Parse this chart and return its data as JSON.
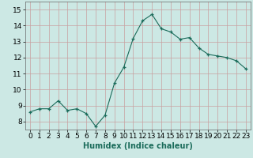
{
  "x": [
    0,
    1,
    2,
    3,
    4,
    5,
    6,
    7,
    8,
    9,
    10,
    11,
    12,
    13,
    14,
    15,
    16,
    17,
    18,
    19,
    20,
    21,
    22,
    23
  ],
  "y": [
    8.6,
    8.8,
    8.8,
    9.3,
    8.7,
    8.8,
    8.5,
    7.7,
    8.4,
    10.4,
    11.4,
    13.2,
    14.3,
    14.7,
    13.8,
    13.6,
    13.15,
    13.25,
    12.6,
    12.2,
    12.1,
    12.0,
    11.8,
    11.3
  ],
  "line_color": "#1a6b5a",
  "marker": "+",
  "marker_size": 3,
  "bg_color": "#cce8e4",
  "grid_color_major": "#c8a0a0",
  "grid_color_minor": "#c8a0a0",
  "xlabel": "Humidex (Indice chaleur)",
  "xlabel_fontsize": 7,
  "tick_fontsize": 6.5,
  "ylim": [
    7.5,
    15.5
  ],
  "yticks": [
    8,
    9,
    10,
    11,
    12,
    13,
    14,
    15
  ],
  "xlim": [
    -0.5,
    23.5
  ],
  "xticks": [
    0,
    1,
    2,
    3,
    4,
    5,
    6,
    7,
    8,
    9,
    10,
    11,
    12,
    13,
    14,
    15,
    16,
    17,
    18,
    19,
    20,
    21,
    22,
    23
  ]
}
